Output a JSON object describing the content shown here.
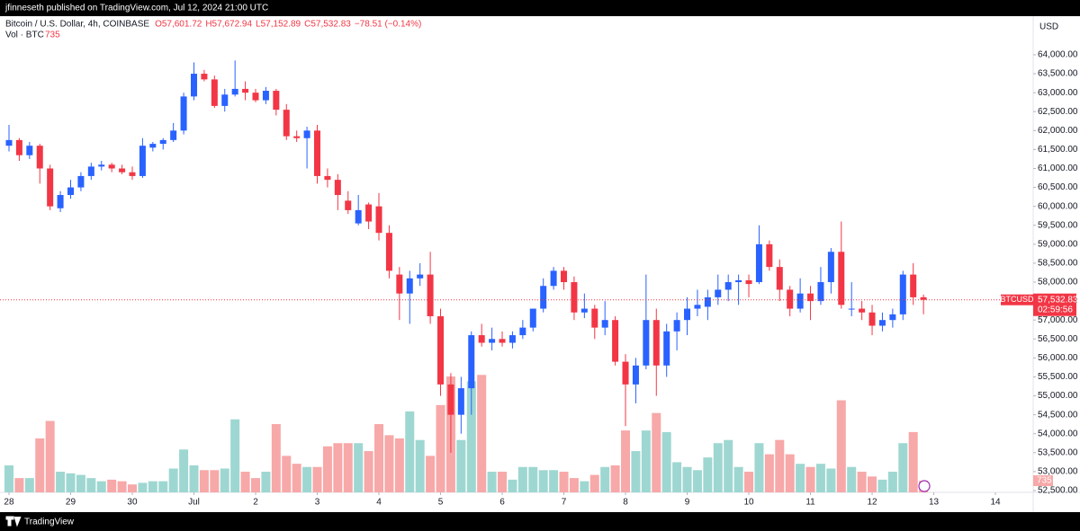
{
  "header": {
    "publisher_line": "jfinneseth published on TradingView.com, Jul 12, 2024 21:00 UTC"
  },
  "footer": {
    "brand": "TradingView"
  },
  "chart_data": {
    "type": "candlestick",
    "symbol": "Bitcoin / U.S. Dollar, 4h, COINBASE",
    "ohlc_labels": [
      "O57,601.72",
      "H57,672.94",
      "L57,152.89",
      "C57,532.83"
    ],
    "change_label": "−78.51 (−0.14%)",
    "volume_label": "Vol · BTC",
    "currency": "USD",
    "ticker": "BTCUSD",
    "last_price_label": "57,532.83",
    "countdown": "02:59:56",
    "up_color": "#2962ff",
    "down_color": "#f23645",
    "up_volume_color": "#9ed7d1",
    "down_volume_color": "#f7a8a8",
    "grid": false,
    "x": [
      0,
      4,
      8,
      12,
      16,
      20,
      24,
      28,
      32,
      36,
      40,
      44,
      48,
      52,
      56,
      60,
      64,
      68,
      72,
      76,
      80,
      84,
      88,
      92,
      96,
      100,
      104,
      108,
      112,
      116,
      120,
      124,
      128,
      132,
      136,
      140,
      144,
      148,
      152,
      156,
      160,
      164,
      168,
      172,
      176,
      180,
      184,
      188,
      192,
      196,
      200,
      204,
      208,
      212,
      216,
      220,
      224,
      228,
      232,
      236,
      240,
      244,
      248,
      252,
      256,
      260,
      264,
      268,
      272,
      276,
      280,
      284,
      288,
      292,
      296,
      300,
      304,
      308,
      312,
      316,
      320,
      324,
      328,
      332,
      336,
      340,
      344,
      348,
      352,
      356
    ],
    "open": [
      61600,
      61750,
      61350,
      61600,
      61000,
      59950,
      60300,
      60500,
      60800,
      61050,
      61100,
      61000,
      60900,
      60800,
      61550,
      61650,
      61750,
      62000,
      62900,
      63500,
      63350,
      62650,
      62950,
      63100,
      63000,
      62800,
      63050,
      62550,
      61850,
      61800,
      62000,
      60800,
      60700,
      60150,
      59550,
      60050,
      60000,
      59300,
      58200,
      57700,
      58100,
      58200,
      57100,
      55300,
      54500,
      55200,
      56600,
      56400,
      56500,
      56400,
      56600,
      56800,
      57300,
      57900,
      58300,
      58000,
      57200,
      57300,
      56800,
      57000,
      55900,
      55300,
      55800,
      57000,
      55800,
      56700,
      57000,
      57300,
      57350,
      57600,
      57800,
      58000,
      58050,
      58000,
      59000,
      58400,
      57800,
      57300,
      57700,
      57500,
      58000,
      58800,
      57300,
      57300,
      57200,
      56850,
      57000,
      57150,
      58200,
      57601.72
    ],
    "high": [
      62150,
      61800,
      61700,
      61650,
      61100,
      60400,
      60700,
      60900,
      61150,
      61200,
      61150,
      61100,
      61050,
      61800,
      61700,
      61800,
      62200,
      63000,
      63800,
      63600,
      63450,
      63100,
      63850,
      63300,
      63100,
      63150,
      63100,
      62700,
      62000,
      62100,
      62150,
      61000,
      60850,
      60400,
      60300,
      60100,
      60350,
      59500,
      58400,
      58300,
      58500,
      58800,
      57300,
      55600,
      55500,
      56700,
      56900,
      56800,
      56700,
      56700,
      57000,
      57300,
      58100,
      58400,
      58400,
      58150,
      57700,
      57400,
      57500,
      57100,
      56100,
      56000,
      58200,
      57300,
      56900,
      57200,
      57600,
      57800,
      57800,
      58200,
      58200,
      58200,
      58200,
      59500,
      59100,
      58600,
      57900,
      58100,
      57900,
      58400,
      58900,
      59600,
      58000,
      57500,
      57400,
      57200,
      57300,
      58300,
      58500,
      57672.94
    ],
    "low": [
      61450,
      61200,
      61250,
      60600,
      59900,
      59850,
      60200,
      60400,
      60700,
      60950,
      60900,
      60850,
      60700,
      60750,
      61450,
      61500,
      61700,
      61900,
      62800,
      63300,
      62600,
      62500,
      62900,
      62800,
      62750,
      62700,
      62400,
      61750,
      61700,
      61000,
      60600,
      60500,
      59900,
      59800,
      59500,
      59400,
      59100,
      58100,
      57000,
      56900,
      57900,
      56900,
      55000,
      53500,
      54000,
      54500,
      56300,
      56200,
      56300,
      56250,
      56500,
      56700,
      57200,
      57800,
      57800,
      57000,
      57050,
      56500,
      56600,
      55800,
      54200,
      54800,
      55700,
      55000,
      55500,
      56200,
      56600,
      57100,
      57000,
      57400,
      57500,
      57400,
      57600,
      57950,
      58300,
      57500,
      57100,
      57200,
      57000,
      57400,
      57700,
      57300,
      57100,
      57000,
      56600,
      56700,
      56800,
      57000,
      57400,
      57152.89
    ],
    "close": [
      61750,
      61350,
      61600,
      61000,
      60000,
      60300,
      60500,
      60800,
      61050,
      61100,
      61000,
      60900,
      60800,
      61600,
      61650,
      61750,
      62000,
      62900,
      63500,
      63350,
      62650,
      62950,
      63100,
      63000,
      62800,
      63050,
      62550,
      61850,
      61800,
      62000,
      60800,
      60700,
      60300,
      59900,
      59900,
      59600,
      59300,
      58300,
      57700,
      58100,
      58200,
      57100,
      55300,
      54500,
      55200,
      56600,
      56400,
      56500,
      56400,
      56600,
      56800,
      57300,
      57900,
      58300,
      58000,
      57200,
      57300,
      56800,
      57000,
      55900,
      55300,
      55800,
      57000,
      55800,
      56700,
      57000,
      57300,
      57400,
      57600,
      57800,
      58000,
      58050,
      57950,
      59000,
      58400,
      57800,
      57300,
      57700,
      57500,
      58000,
      58800,
      57400,
      57300,
      57200,
      56850,
      57000,
      57150,
      58200,
      57600,
      57532.83
    ],
    "volume": [
      1700,
      900,
      900,
      3400,
      4500,
      1300,
      1200,
      1100,
      900,
      700,
      800,
      700,
      500,
      600,
      700,
      700,
      1500,
      2700,
      1700,
      1400,
      1400,
      1500,
      4600,
      1300,
      900,
      1300,
      4300,
      2300,
      1800,
      1600,
      1600,
      2900,
      3100,
      3100,
      3100,
      2600,
      4300,
      3600,
      3400,
      5100,
      3300,
      2300,
      5500,
      7300,
      3300,
      7000,
      7400,
      1300,
      1300,
      800,
      1600,
      1600,
      1400,
      1400,
      1300,
      900,
      700,
      1100,
      1600,
      1700,
      3900,
      2600,
      3900,
      5000,
      3800,
      1900,
      1600,
      1400,
      2200,
      3100,
      3300,
      1600,
      1300,
      3100,
      2400,
      3300,
      2400,
      1800,
      1600,
      1800,
      1500,
      5800,
      1600,
      1300,
      1000,
      800,
      1300,
      3100,
      3800,
      735
    ],
    "xlim": [
      -3.5,
      398.7
    ],
    "xticks": [
      {
        "value": 0,
        "label": "28"
      },
      {
        "value": 24,
        "label": "29"
      },
      {
        "value": 48,
        "label": "30"
      },
      {
        "value": 72,
        "label": "Jul"
      },
      {
        "value": 96,
        "label": "2"
      },
      {
        "value": 120,
        "label": "3"
      },
      {
        "value": 144,
        "label": "4"
      },
      {
        "value": 168,
        "label": "5"
      },
      {
        "value": 192,
        "label": "6"
      },
      {
        "value": 216,
        "label": "7"
      },
      {
        "value": 240,
        "label": "8"
      },
      {
        "value": 264,
        "label": "9"
      },
      {
        "value": 288,
        "label": "10"
      },
      {
        "value": 312,
        "label": "11"
      },
      {
        "value": 336,
        "label": "12"
      },
      {
        "value": 360,
        "label": "13"
      },
      {
        "value": 384,
        "label": "14"
      }
    ],
    "ylim": [
      52452,
      65019
    ],
    "yticks": [
      {
        "value": 52500,
        "label": "52,500.00"
      },
      {
        "value": 53000,
        "label": "53,000.00"
      },
      {
        "value": 53500,
        "label": "53,500.00"
      },
      {
        "value": 54000,
        "label": "54,000.00"
      },
      {
        "value": 54500,
        "label": "54,500.00"
      },
      {
        "value": 55000,
        "label": "55,000.00"
      },
      {
        "value": 55500,
        "label": "55,500.00"
      },
      {
        "value": 56000,
        "label": "56,000.00"
      },
      {
        "value": 56500,
        "label": "56,500.00"
      },
      {
        "value": 57000,
        "label": "57,000.00"
      },
      {
        "value": 57500,
        "label": "57,500.00"
      },
      {
        "value": 58000,
        "label": "58,000.00"
      },
      {
        "value": 58500,
        "label": "58,500.00"
      },
      {
        "value": 59000,
        "label": "59,000.00"
      },
      {
        "value": 59500,
        "label": "59,500.00"
      },
      {
        "value": 60000,
        "label": "60,000.00"
      },
      {
        "value": 60500,
        "label": "60,500.00"
      },
      {
        "value": 61000,
        "label": "61,000.00"
      },
      {
        "value": 61500,
        "label": "61,500.00"
      },
      {
        "value": 62000,
        "label": "62,000.00"
      },
      {
        "value": 62500,
        "label": "62,500.00"
      },
      {
        "value": 63000,
        "label": "63,000.00"
      },
      {
        "value": 63500,
        "label": "63,500.00"
      },
      {
        "value": 64000,
        "label": "64,000.00"
      }
    ],
    "volume_lim": [
      0,
      30000
    ]
  }
}
